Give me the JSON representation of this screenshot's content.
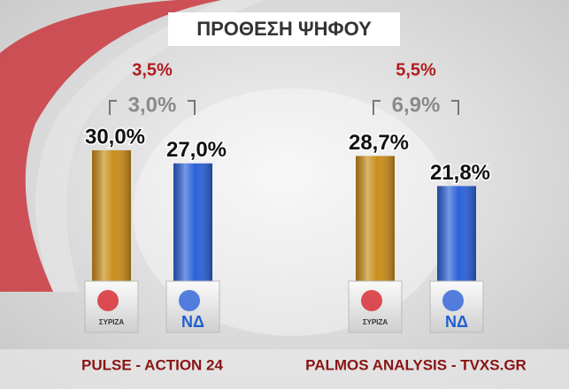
{
  "title": "ΠΡΟΘΕΣΗ ΨΗΦΟΥ",
  "chart_data": [
    {
      "type": "bar",
      "title": "PULSE - ACTION 24",
      "categories": [
        "ΣΥΡΙΖΑ",
        "ΝΔ"
      ],
      "values": [
        30.0,
        27.0
      ],
      "value_labels": [
        "30,0%",
        "27,0%"
      ],
      "colors": [
        "#c98d1a",
        "#2c62d8"
      ],
      "ylim": [
        0,
        30
      ],
      "annotations": [
        "3,5%",
        "3,0%"
      ]
    },
    {
      "type": "bar",
      "title": "PALMOS ANALYSIS - TVXS.GR",
      "categories": [
        "ΣΥΡΙΖΑ",
        "ΝΔ"
      ],
      "values": [
        28.7,
        21.8
      ],
      "value_labels": [
        "28,7%",
        "21,8%"
      ],
      "colors": [
        "#c98d1a",
        "#2c62d8"
      ],
      "ylim": [
        0,
        30
      ],
      "annotations": [
        "5,5%",
        "6,9%"
      ]
    }
  ]
}
